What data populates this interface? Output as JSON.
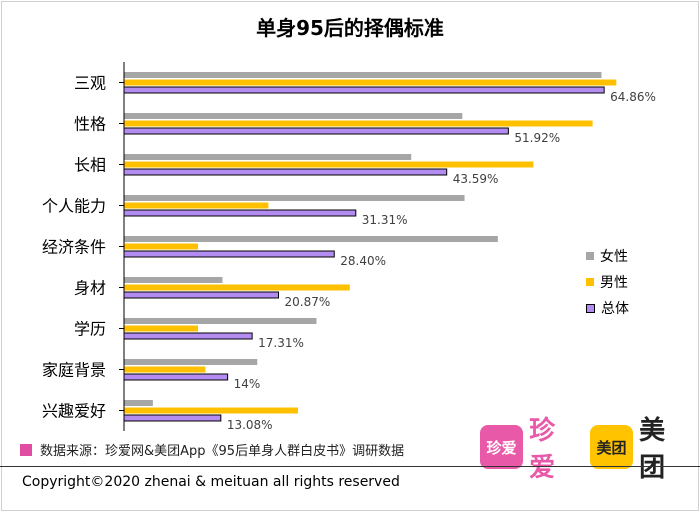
{
  "chart_data": {
    "type": "bar",
    "orientation": "horizontal",
    "title": "单身95后的择偶标准",
    "categories": [
      "三观",
      "性格",
      "长相",
      "个人能力",
      "经济条件",
      "身材",
      "学历",
      "家庭背景",
      "兴趣爱好"
    ],
    "xlim": [
      0,
      70
    ],
    "series": [
      {
        "name": "女性",
        "color": "#a6a6a6",
        "values": [
          64.5,
          45.7,
          38.8,
          46.0,
          50.5,
          13.3,
          26.0,
          18.0,
          3.9
        ]
      },
      {
        "name": "男性",
        "color": "#ffc000",
        "values": [
          66.5,
          63.3,
          55.3,
          19.5,
          10.0,
          30.5,
          10.0,
          11.0,
          23.5
        ]
      },
      {
        "name": "总体",
        "color": "#b38cf2",
        "values": [
          64.86,
          51.92,
          43.59,
          31.31,
          28.4,
          20.87,
          17.31,
          14,
          13.08
        ]
      }
    ],
    "data_labels": [
      "64.86%",
      "51.92%",
      "43.59%",
      "31.31%",
      "28.40%",
      "20.87%",
      "17.31%",
      "14%",
      "13.08%"
    ],
    "legend_position": "right"
  },
  "colors": {
    "accent_pink": "#e04da3",
    "meituan_yellow": "#ffc300",
    "zhenai_pink": "#e85aa8"
  },
  "source_text": "数据来源：珍爱网&美团App《95后单身人群白皮书》调研数据",
  "logos": {
    "zhenai_box": "珍爱",
    "zhenai_text": "珍爱",
    "meituan_box": "美团",
    "meituan_text": "美团"
  },
  "copyright": "Copyright©2020 zhenai & meituan all rights reserved"
}
